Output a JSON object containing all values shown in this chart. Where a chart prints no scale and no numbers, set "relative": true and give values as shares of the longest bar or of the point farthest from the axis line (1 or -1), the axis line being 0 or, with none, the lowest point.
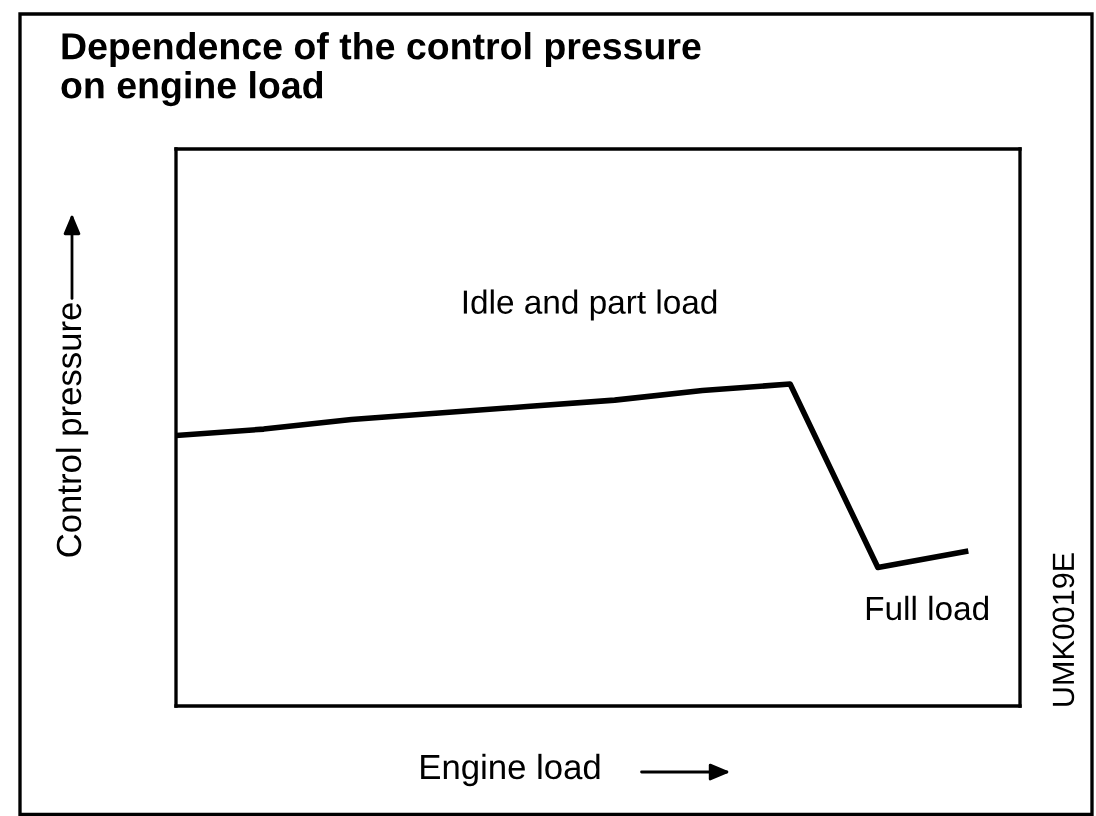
{
  "chart_data": {
    "type": "line",
    "title": "Dependence of the control pressure\non engine load",
    "xlabel": "Engine load",
    "ylabel": "Control pressure",
    "relative": true,
    "categories": [
      null,
      null,
      null,
      null,
      null,
      null,
      null,
      null,
      null,
      null
    ],
    "marker": "none",
    "line_style": "solid",
    "legend": false,
    "series": [
      {
        "color": "#000000",
        "values": [
          0.84,
          0.86,
          0.89,
          0.91,
          0.93,
          0.95,
          0.98,
          1,
          0.43,
          0.48
        ]
      }
    ],
    "annotations": [
      "Idle and part load",
      "Full load",
      "UMK0019E"
    ]
  }
}
